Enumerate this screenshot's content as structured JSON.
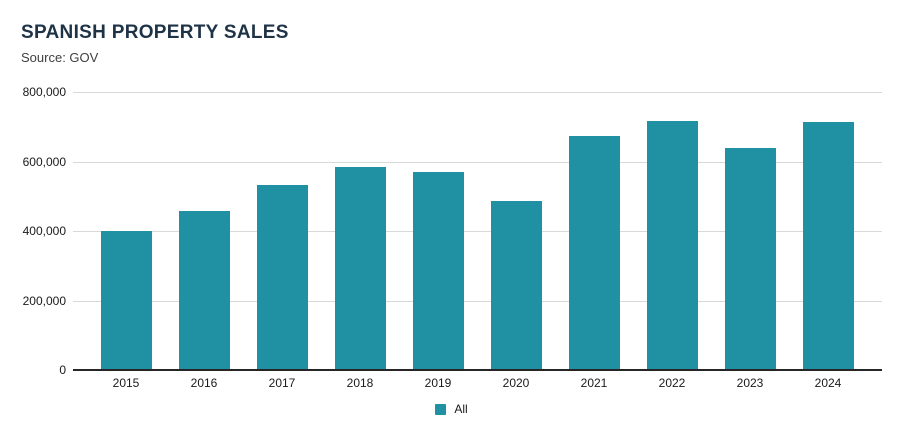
{
  "header": {
    "title": "SPANISH PROPERTY SALES",
    "source": "Source: GOV"
  },
  "colors": {
    "bar": "#2090A3",
    "title_text": "#1F3347",
    "source_text": "#3F3F3F",
    "tick_label": "#1A1A1A",
    "gridline": "#D9D9D9",
    "axis_line": "#262626",
    "background": "#FFFFFF"
  },
  "legend": {
    "items": [
      {
        "label": "All",
        "color": "#2090A3"
      }
    ],
    "position": "bottom-center"
  },
  "chart_data": {
    "type": "bar",
    "title": "SPANISH PROPERTY SALES",
    "subtitle": "Source: GOV",
    "categories": [
      "2015",
      "2016",
      "2017",
      "2018",
      "2019",
      "2020",
      "2021",
      "2022",
      "2023",
      "2024"
    ],
    "series": [
      {
        "name": "All",
        "color": "#2090A3",
        "values": [
          401000,
          457000,
          532000,
          585000,
          569000,
          486000,
          674000,
          717000,
          640000,
          714000
        ]
      }
    ],
    "xlabel": "",
    "ylabel": "",
    "ylim": [
      0,
      800000
    ],
    "yticks": [
      {
        "value": 0,
        "label": "0"
      },
      {
        "value": 200000,
        "label": "200,000"
      },
      {
        "value": 400000,
        "label": "400,000"
      },
      {
        "value": 600000,
        "label": "600,000"
      },
      {
        "value": 800000,
        "label": "800,000"
      }
    ],
    "grid": "horizontal",
    "legend_position": "bottom"
  }
}
